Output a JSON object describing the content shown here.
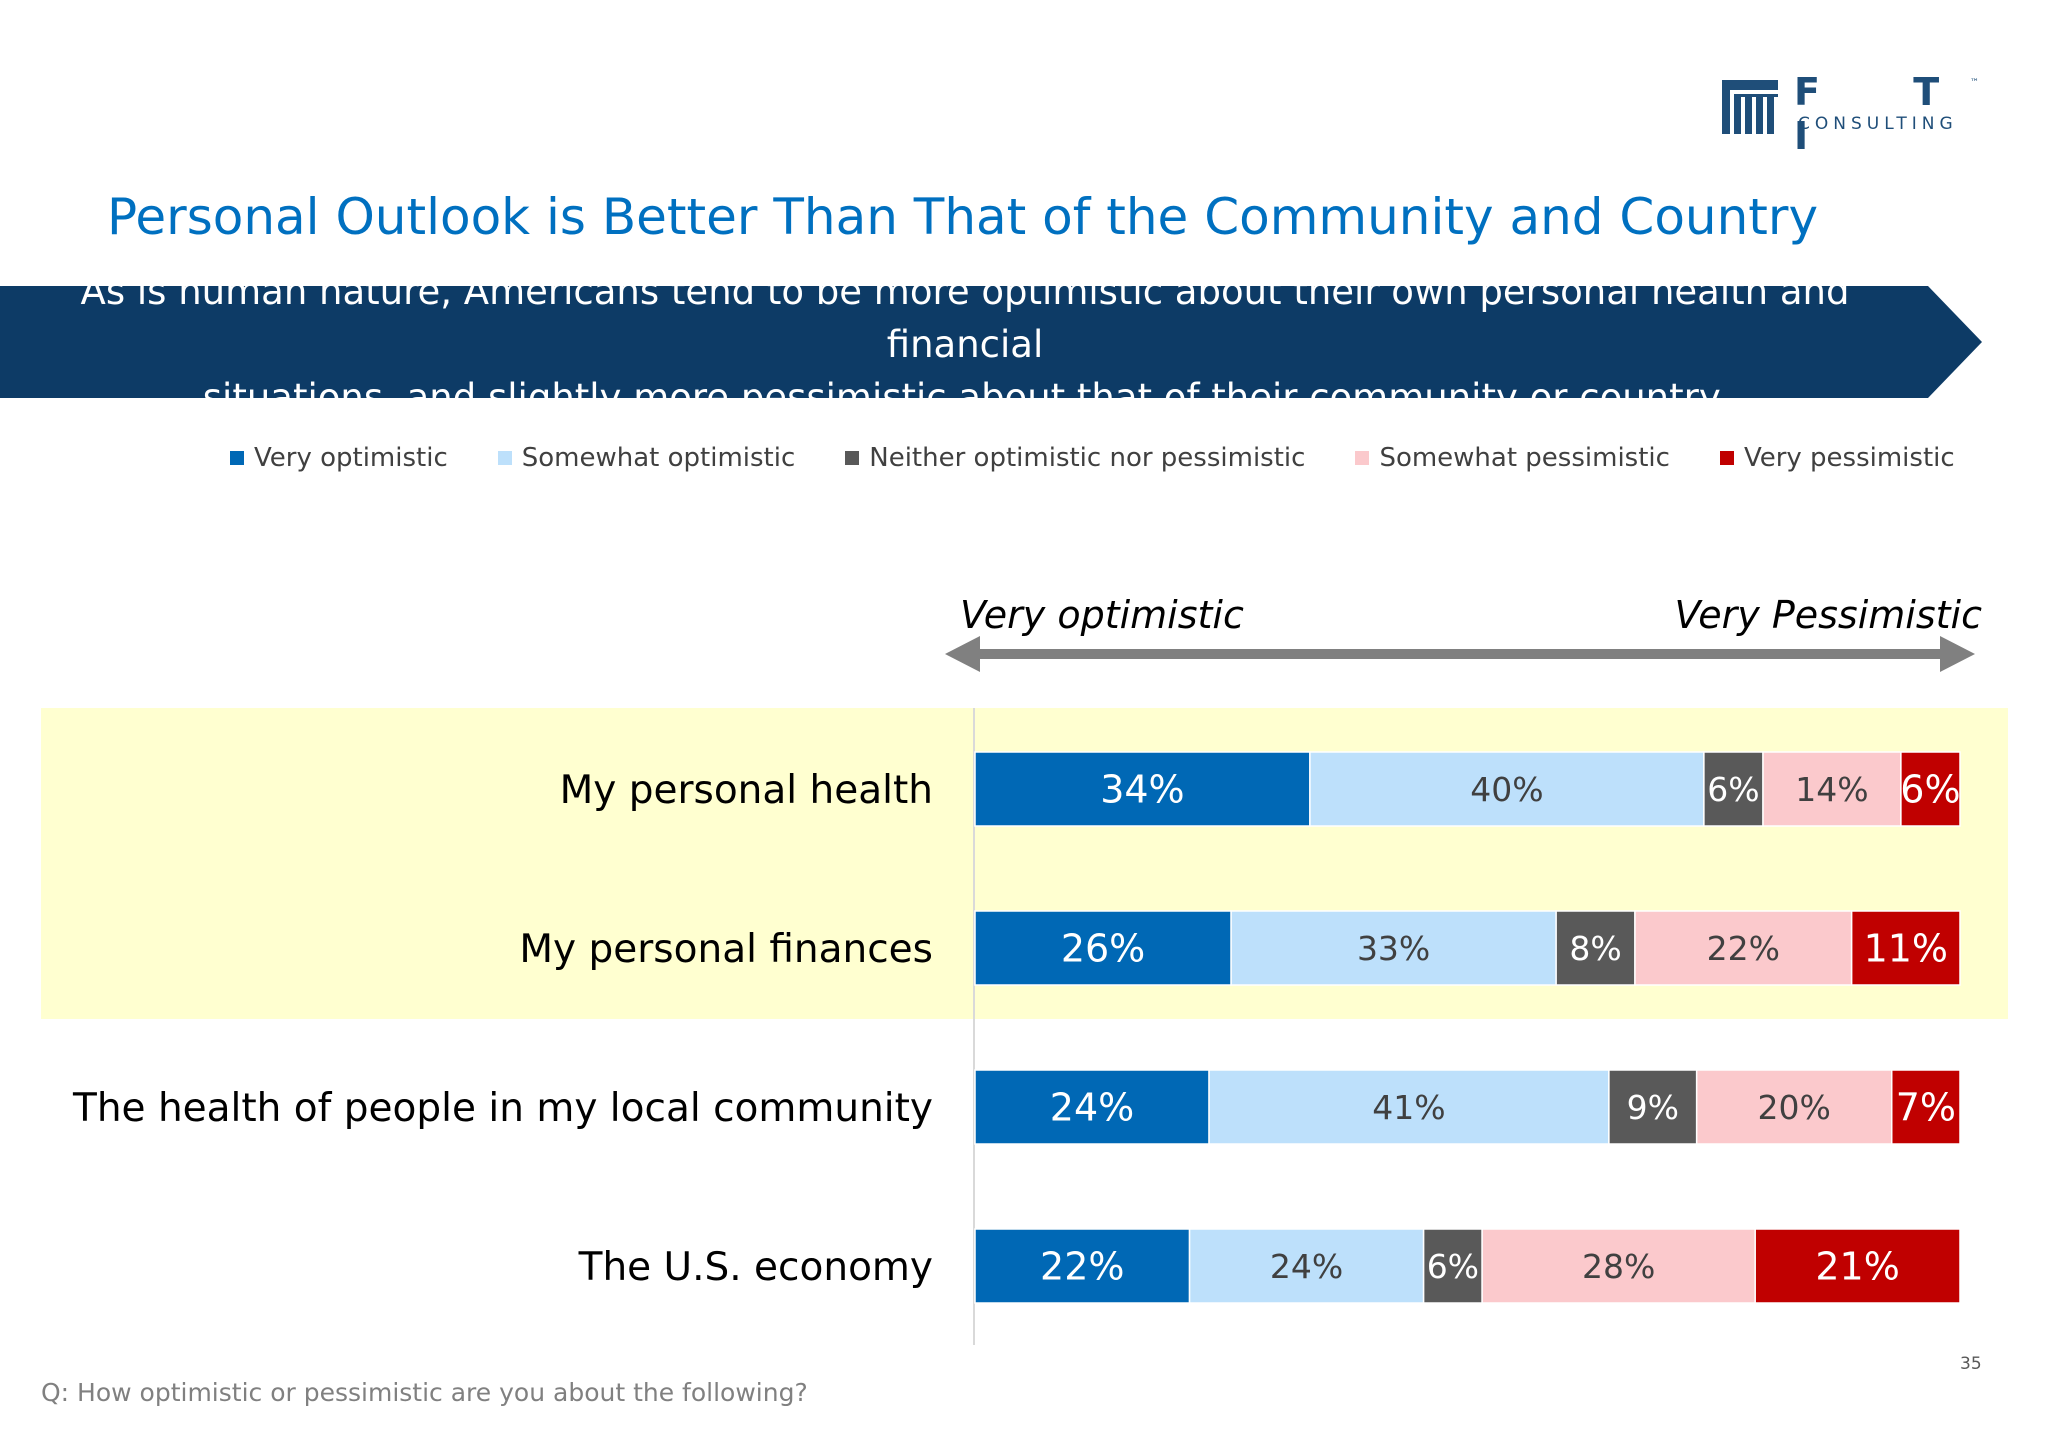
{
  "logo": {
    "letters": "F T I",
    "subtext": "CONSULTING",
    "tm": "™"
  },
  "title": "Personal Outlook is Better Than That of the Community and Country",
  "banner": {
    "line1": "As is human nature, Americans tend to be more optimistic about their own personal health and financial",
    "line2": "situations, and slightly more pessimistic about that of their community or country."
  },
  "chart_data": {
    "type": "bar",
    "orientation": "horizontal",
    "stacked": true,
    "categories": [
      "My personal health",
      "My personal finances",
      "The health of people in my local community",
      "The U.S. economy"
    ],
    "series": [
      {
        "name": "Very optimistic",
        "color": "#0068b5",
        "label_color": "#ffffff",
        "values": [
          34,
          26,
          24,
          22
        ]
      },
      {
        "name": "Somewhat optimistic",
        "color": "#bde0fb",
        "label_color": "#404040",
        "values": [
          40,
          33,
          41,
          24
        ]
      },
      {
        "name": "Neither optimistic nor pessimistic",
        "color": "#595959",
        "label_color": "#ffffff",
        "values": [
          6,
          8,
          9,
          6
        ]
      },
      {
        "name": "Somewhat pessimistic",
        "color": "#fbc9cc",
        "label_color": "#404040",
        "values": [
          14,
          22,
          20,
          28
        ]
      },
      {
        "name": "Very pessimistic",
        "color": "#c00000",
        "label_color": "#ffffff",
        "values": [
          6,
          11,
          7,
          21
        ]
      }
    ],
    "data_labels": [
      [
        "34%",
        "40%",
        "6%",
        "14%",
        "6%"
      ],
      [
        "26%",
        "33%",
        "8%",
        "22%",
        "11%"
      ],
      [
        "24%",
        "41%",
        "9%",
        "20%",
        "7%"
      ],
      [
        "22%",
        "24%",
        "6%",
        "28%",
        "21%"
      ]
    ],
    "highlighted_categories": [
      "My personal health",
      "My personal finances"
    ],
    "highlight_color": "#ffffd0",
    "scale_arrow": {
      "left_label": "Very optimistic",
      "right_label": "Very Pessimistic"
    },
    "legend_position": "top",
    "grid": false
  },
  "footnote": "Q: How optimistic or pessimistic are you about the following?",
  "page_number": "35"
}
